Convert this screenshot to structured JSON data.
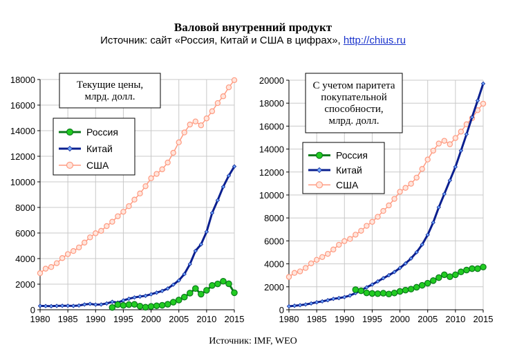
{
  "header": {
    "title": "Валовой внутренний продукт",
    "subtitle_prefix": "Источник: сайт «Россия, Китай и США в цифрах», ",
    "subtitle_link": "http://chius.ru"
  },
  "footer": {
    "source": "Источник: IMF, WEO"
  },
  "colors": {
    "russia": "#0a7a1a",
    "russia_marker": "#22cc22",
    "china": "#0a1f8f",
    "china_marker": "#6fa8ff",
    "usa": "#ff9a80",
    "grid": "#c8c8c8"
  },
  "chart_data": [
    {
      "type": "line",
      "title": "Текущие цены, млрд. долл.",
      "title_lines": [
        "Текущие цены,",
        "млрд. долл."
      ],
      "xlim": [
        1980,
        2015
      ],
      "ylim": [
        0,
        18000
      ],
      "x_ticks": [
        "1980",
        "1985",
        "1990",
        "1995",
        "2000",
        "2005",
        "2010",
        "2015"
      ],
      "y_ticks": [
        "0",
        "2000",
        "4000",
        "6000",
        "8000",
        "10000",
        "12000",
        "14000",
        "16000",
        "18000"
      ],
      "grid": true,
      "legend_position": "upper-left",
      "series": [
        {
          "name": "Россия",
          "color_key": "russia",
          "x": [
            1993,
            1994,
            1995,
            1996,
            1997,
            1998,
            1999,
            2000,
            2001,
            2002,
            2003,
            2004,
            2005,
            2006,
            2007,
            2008,
            2009,
            2010,
            2011,
            2012,
            2013,
            2014,
            2015
          ],
          "y": [
            180,
            400,
            340,
            400,
            420,
            280,
            200,
            260,
            310,
            350,
            430,
            590,
            760,
            990,
            1300,
            1660,
            1220,
            1520,
            1900,
            2020,
            2230,
            2030,
            1330
          ]
        },
        {
          "name": "Китай",
          "color_key": "china",
          "x": [
            1980,
            1981,
            1982,
            1983,
            1984,
            1985,
            1986,
            1987,
            1988,
            1989,
            1990,
            1991,
            1992,
            1993,
            1994,
            1995,
            1996,
            1997,
            1998,
            1999,
            2000,
            2001,
            2002,
            2003,
            2004,
            2005,
            2006,
            2007,
            2008,
            2009,
            2010,
            2011,
            2012,
            2013,
            2014,
            2015
          ],
          "y": [
            300,
            290,
            280,
            300,
            310,
            310,
            300,
            330,
            410,
            460,
            400,
            410,
            490,
            620,
            560,
            730,
            860,
            960,
            1030,
            1090,
            1210,
            1340,
            1470,
            1660,
            1960,
            2290,
            2790,
            3570,
            4600,
            5110,
            6100,
            7570,
            8560,
            9610,
            10480,
            11200
          ]
        },
        {
          "name": "США",
          "color_key": "usa",
          "x": [
            1980,
            1981,
            1982,
            1983,
            1984,
            1985,
            1986,
            1987,
            1988,
            1989,
            1990,
            1991,
            1992,
            1993,
            1994,
            1995,
            1996,
            1997,
            1998,
            1999,
            2000,
            2001,
            2002,
            2003,
            2004,
            2005,
            2006,
            2007,
            2008,
            2009,
            2010,
            2011,
            2012,
            2013,
            2014,
            2015
          ],
          "y": [
            2860,
            3210,
            3340,
            3640,
            4040,
            4350,
            4590,
            4870,
            5250,
            5660,
            5980,
            6170,
            6540,
            6880,
            7310,
            7660,
            8100,
            8610,
            9090,
            9660,
            10280,
            10620,
            10980,
            11510,
            12270,
            13090,
            13860,
            14480,
            14720,
            14420,
            14960,
            15520,
            16160,
            16690,
            17390,
            17950
          ]
        }
      ]
    },
    {
      "type": "line",
      "title": "С учетом паритета покупательной способности, млрд. долл.",
      "title_lines": [
        "С учетом паритета",
        "покупательной",
        "способности,",
        "млрд. долл."
      ],
      "xlim": [
        1980,
        2015
      ],
      "ylim": [
        0,
        20000
      ],
      "x_ticks": [
        "1980",
        "1985",
        "1990",
        "1995",
        "2000",
        "2005",
        "2010",
        "2015"
      ],
      "y_ticks": [
        "0",
        "2000",
        "4000",
        "6000",
        "8000",
        "10000",
        "12000",
        "14000",
        "16000",
        "18000",
        "20000"
      ],
      "grid": true,
      "legend_position": "upper-left",
      "series": [
        {
          "name": "Россия",
          "color_key": "russia",
          "x": [
            1992,
            1993,
            1994,
            1995,
            1996,
            1997,
            1998,
            1999,
            2000,
            2001,
            2002,
            2003,
            2004,
            2005,
            2006,
            2007,
            2008,
            2009,
            2010,
            2011,
            2012,
            2013,
            2014,
            2015
          ],
          "y": [
            1750,
            1650,
            1470,
            1420,
            1400,
            1440,
            1370,
            1460,
            1600,
            1710,
            1800,
            1960,
            2130,
            2310,
            2540,
            2800,
            3050,
            2880,
            3050,
            3300,
            3460,
            3580,
            3580,
            3720
          ]
        },
        {
          "name": "Китай",
          "color_key": "china",
          "x": [
            1980,
            1981,
            1982,
            1983,
            1984,
            1985,
            1986,
            1987,
            1988,
            1989,
            1990,
            1991,
            1992,
            1993,
            1994,
            1995,
            1996,
            1997,
            1998,
            1999,
            2000,
            2001,
            2002,
            2003,
            2004,
            2005,
            2006,
            2007,
            2008,
            2009,
            2010,
            2011,
            2012,
            2013,
            2014,
            2015
          ],
          "y": [
            300,
            350,
            400,
            460,
            550,
            650,
            730,
            830,
            950,
            1020,
            1100,
            1240,
            1450,
            1690,
            1950,
            2200,
            2470,
            2750,
            3010,
            3290,
            3640,
            4030,
            4470,
            5010,
            5680,
            6530,
            7600,
            8930,
            10090,
            11270,
            12450,
            13860,
            15290,
            16780,
            18220,
            19700
          ]
        },
        {
          "name": "США",
          "color_key": "usa",
          "x": [
            1980,
            1981,
            1982,
            1983,
            1984,
            1985,
            1986,
            1987,
            1988,
            1989,
            1990,
            1991,
            1992,
            1993,
            1994,
            1995,
            1996,
            1997,
            1998,
            1999,
            2000,
            2001,
            2002,
            2003,
            2004,
            2005,
            2006,
            2007,
            2008,
            2009,
            2010,
            2011,
            2012,
            2013,
            2014,
            2015
          ],
          "y": [
            2860,
            3210,
            3340,
            3640,
            4040,
            4350,
            4590,
            4870,
            5250,
            5660,
            5980,
            6170,
            6540,
            6880,
            7310,
            7660,
            8100,
            8610,
            9090,
            9660,
            10280,
            10620,
            10980,
            11510,
            12270,
            13090,
            13860,
            14480,
            14720,
            14420,
            14960,
            15520,
            16160,
            16690,
            17390,
            17950
          ]
        }
      ]
    }
  ]
}
